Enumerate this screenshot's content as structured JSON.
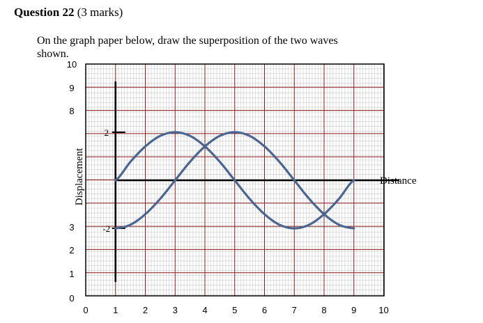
{
  "question": {
    "label": "Question",
    "number": "22",
    "marks": "(3 marks)",
    "instruction_line1": "On the graph paper below, draw the superposition of the two waves",
    "instruction_line2": "shown."
  },
  "chart_data": {
    "type": "line",
    "title": "",
    "xlabel": "Distance",
    "ylabel": "Displacement",
    "frame_x_ticks": [
      "0",
      "1",
      "2",
      "3",
      "4",
      "5",
      "6",
      "7",
      "8",
      "9",
      "10"
    ],
    "frame_y_ticks": [
      "0",
      "1",
      "2",
      "3",
      "8",
      "9",
      "10"
    ],
    "xlim": [
      0,
      10
    ],
    "ylim": [
      -3,
      3
    ],
    "grid": true,
    "y_axis_tick_labels": [
      "2",
      "-2"
    ],
    "series": [
      {
        "x": [
          1,
          1.5,
          2,
          2.5,
          3,
          3.5,
          4,
          4.5,
          5,
          5.5,
          6,
          6.5,
          7,
          7.5,
          8,
          8.5,
          9
        ],
        "y": [
          0,
          0.77,
          1.41,
          1.85,
          2,
          1.85,
          1.41,
          0.77,
          0,
          -0.77,
          -1.41,
          -1.85,
          -2,
          -1.85,
          -1.41,
          -0.77,
          0
        ]
      },
      {
        "x": [
          1,
          1.5,
          2,
          2.5,
          3,
          3.5,
          4,
          4.5,
          5,
          5.5,
          6,
          6.5,
          7,
          7.5,
          8,
          8.5,
          9
        ],
        "y": [
          -2,
          -1.85,
          -1.41,
          -0.77,
          0,
          0.77,
          1.41,
          1.85,
          2,
          1.85,
          1.41,
          0.77,
          0,
          -0.77,
          -1.41,
          -1.85,
          -2
        ]
      }
    ],
    "colors": {
      "waves": "#4a6690",
      "grid_major": "#8b1a1a",
      "grid_minor": "#c8c8c8",
      "axes": "#000000"
    }
  }
}
